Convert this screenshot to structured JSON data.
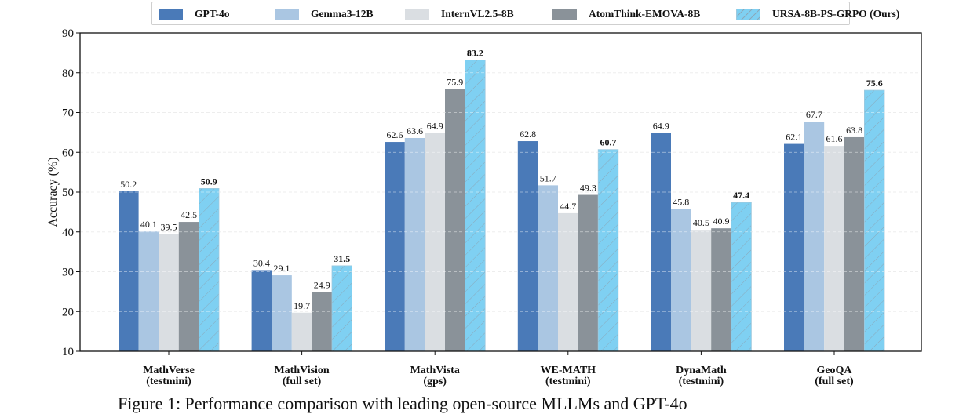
{
  "chart_data": {
    "type": "bar",
    "title": "",
    "xlabel": "",
    "ylabel": "Accuracy (%)",
    "ylim": [
      10,
      90
    ],
    "yticks": [
      10,
      20,
      30,
      40,
      50,
      60,
      70,
      80,
      90
    ],
    "grid": "horizontal-dashed",
    "legend_position": "top-center",
    "categories": [
      {
        "line1": "MathVerse",
        "line2": "(testmini)"
      },
      {
        "line1": "MathVision",
        "line2": "(full set)"
      },
      {
        "line1": "MathVista",
        "line2": "(gps)"
      },
      {
        "line1": "WE-MATH",
        "line2": "(testmini)"
      },
      {
        "line1": "DynaMath",
        "line2": "(testmini)"
      },
      {
        "line1": "GeoQA",
        "line2": "(full set)"
      }
    ],
    "series": [
      {
        "name": "GPT-4o",
        "color": "#4a7ab8",
        "hatch": false,
        "bold_labels": false,
        "values": [
          50.2,
          30.4,
          62.6,
          62.8,
          64.9,
          62.1
        ]
      },
      {
        "name": "Gemma3-12B",
        "color": "#aac6e2",
        "hatch": false,
        "bold_labels": false,
        "values": [
          40.1,
          29.1,
          63.6,
          51.7,
          45.8,
          67.7
        ]
      },
      {
        "name": "InternVL2.5-8B",
        "color": "#dadee2",
        "hatch": false,
        "bold_labels": false,
        "values": [
          39.5,
          19.7,
          64.9,
          44.7,
          40.5,
          61.6
        ]
      },
      {
        "name": "AtomThink-EMOVA-8B",
        "color": "#8a9299",
        "hatch": false,
        "bold_labels": false,
        "values": [
          42.5,
          24.9,
          75.9,
          49.3,
          40.9,
          63.8
        ]
      },
      {
        "name": "URSA-8B-PS-GRPO (Ours)",
        "color": "#7fd0f2",
        "hatch": true,
        "bold_labels": true,
        "values": [
          50.9,
          31.5,
          83.2,
          60.7,
          47.4,
          75.6
        ]
      }
    ]
  },
  "caption": "Figure 1: Performance comparison with leading open-source MLLMs and GPT-4o"
}
